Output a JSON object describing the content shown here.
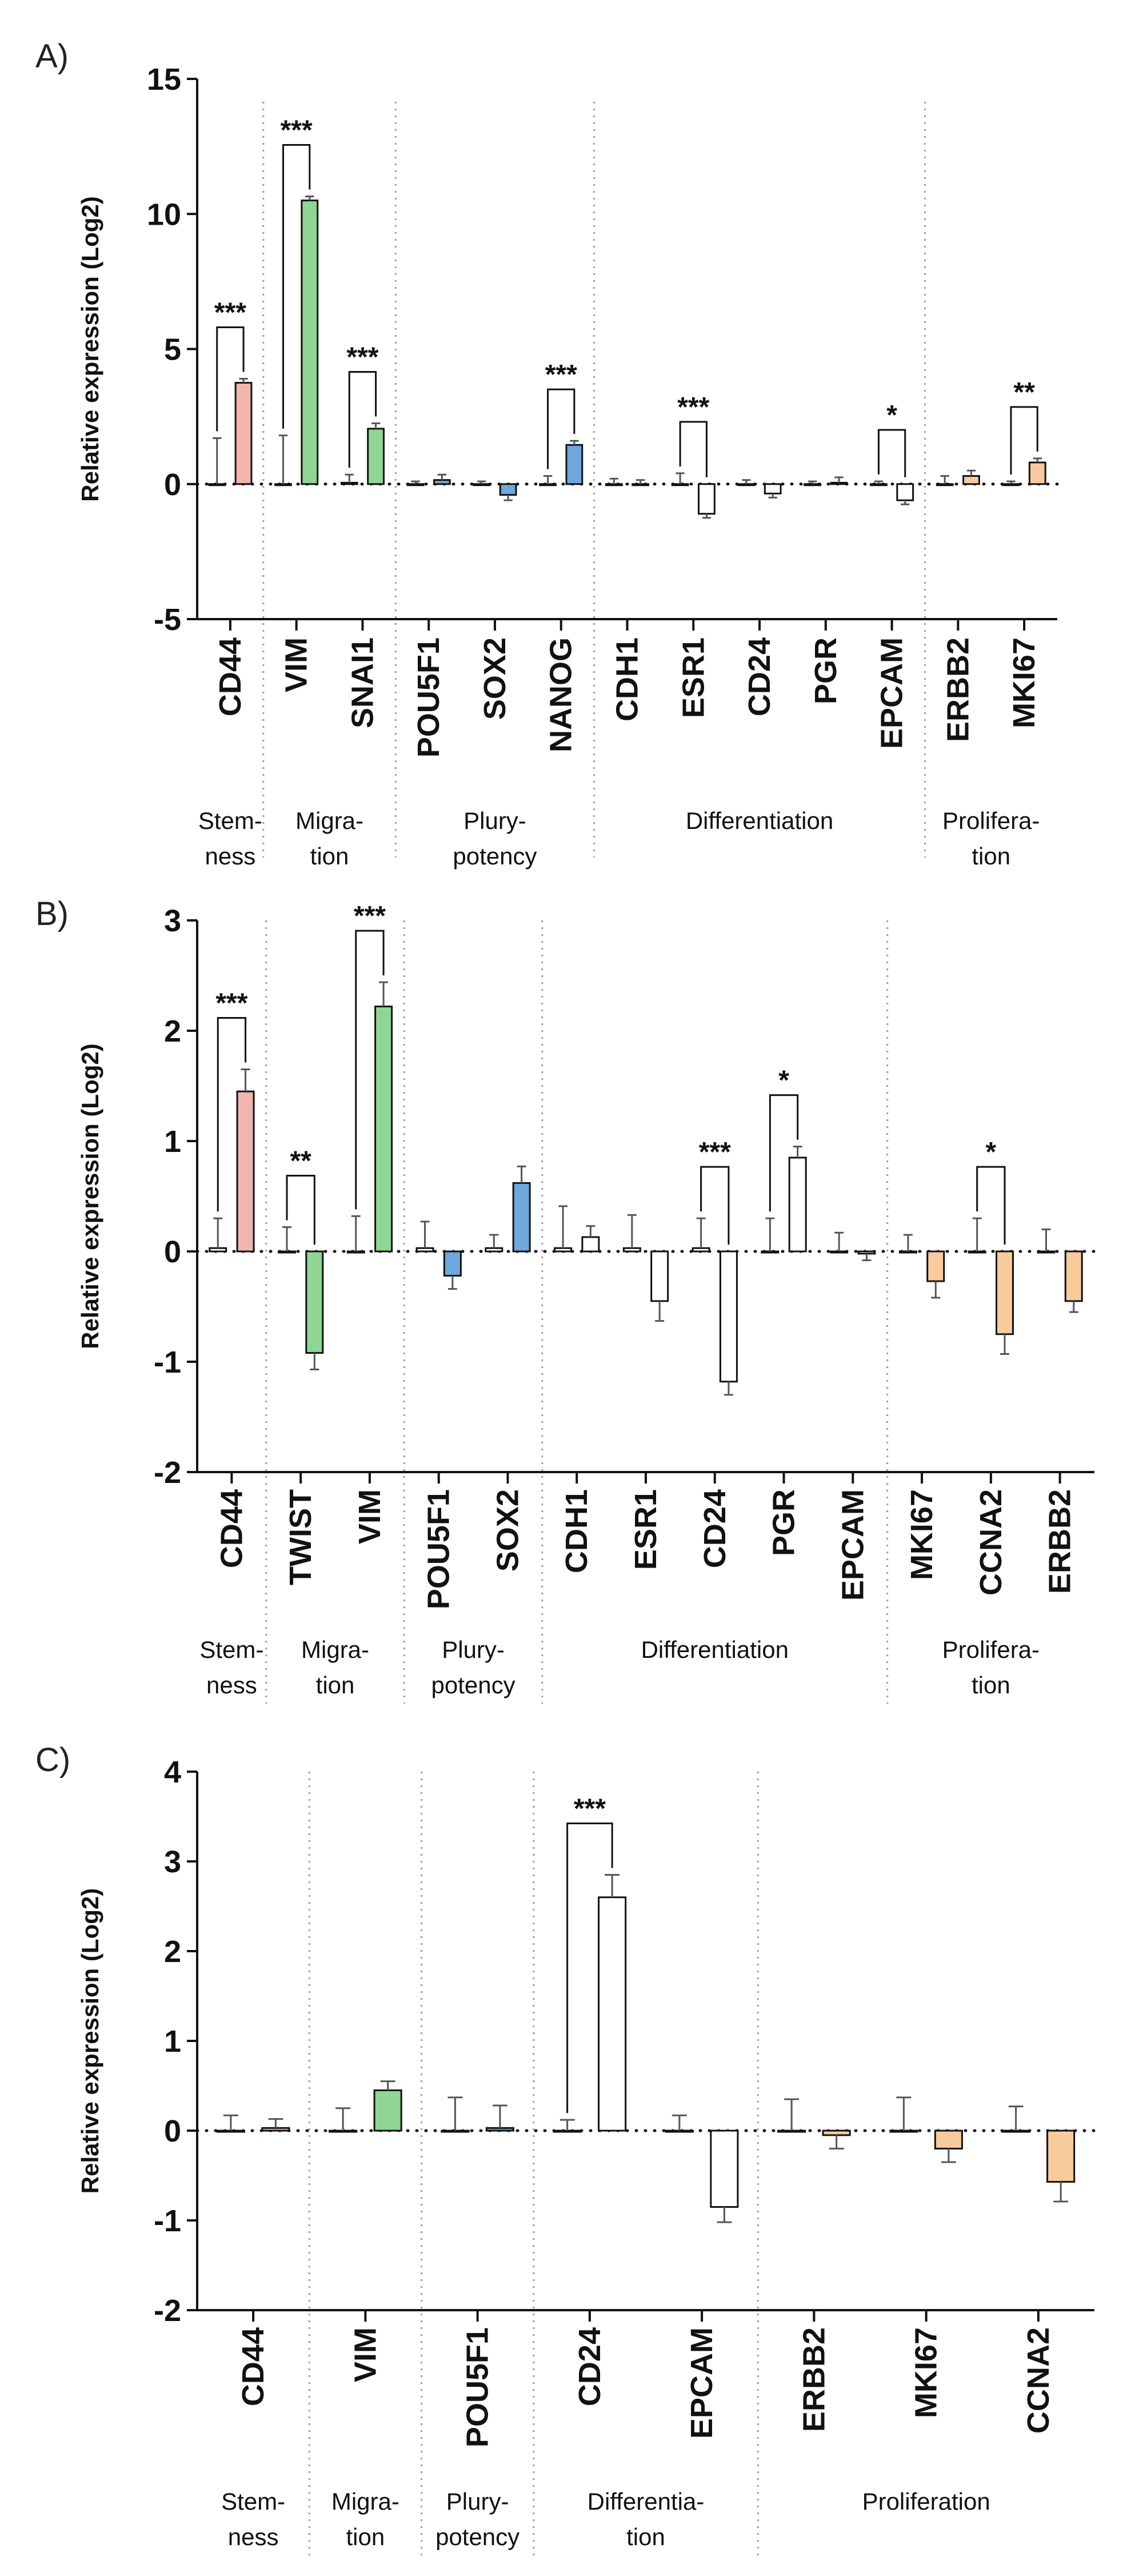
{
  "figure": {
    "panels": [
      "A)",
      "B)",
      "C)"
    ]
  },
  "chart_data": [
    {
      "panel": "A)",
      "type": "bar",
      "ylabel": "Relative expression (Log2)",
      "ylim": [
        -5,
        15
      ],
      "yticks": [
        "-5",
        "0",
        "5",
        "10",
        "15"
      ],
      "genes": [
        {
          "name": "CD44",
          "control": 0.0,
          "control_err": 1.7,
          "treated": 3.75,
          "treated_err": 0.15,
          "color": "#f2b6ae",
          "sig": "***"
        },
        {
          "name": "VIM",
          "control": 0.0,
          "control_err": 1.8,
          "treated": 10.5,
          "treated_err": 0.15,
          "color": "#8fd694",
          "sig": "***"
        },
        {
          "name": "SNAI1",
          "control": 0.05,
          "control_err": 0.3,
          "treated": 2.05,
          "treated_err": 0.2,
          "color": "#8fd694",
          "sig": "***"
        },
        {
          "name": "POU5F1",
          "control": 0.0,
          "control_err": 0.1,
          "treated": 0.15,
          "treated_err": 0.2,
          "color": "#6fa8dc",
          "sig": ""
        },
        {
          "name": "SOX2",
          "control": 0.0,
          "control_err": 0.1,
          "treated": -0.4,
          "treated_err": 0.2,
          "color": "#6fa8dc",
          "sig": ""
        },
        {
          "name": "NANOG",
          "control": 0.0,
          "control_err": 0.3,
          "treated": 1.45,
          "treated_err": 0.15,
          "color": "#6fa8dc",
          "sig": "***"
        },
        {
          "name": "CDH1",
          "control": 0.0,
          "control_err": 0.2,
          "treated": 0.0,
          "treated_err": 0.15,
          "color": "#ffffff",
          "sig": ""
        },
        {
          "name": "ESR1",
          "control": 0.0,
          "control_err": 0.4,
          "treated": -1.1,
          "treated_err": 0.15,
          "color": "#ffffff",
          "sig": "***"
        },
        {
          "name": "CD24",
          "control": 0.0,
          "control_err": 0.15,
          "treated": -0.35,
          "treated_err": 0.15,
          "color": "#ffffff",
          "sig": ""
        },
        {
          "name": "PGR",
          "control": 0.0,
          "control_err": 0.1,
          "treated": 0.05,
          "treated_err": 0.2,
          "color": "#ffffff",
          "sig": ""
        },
        {
          "name": "EPCAM",
          "control": 0.0,
          "control_err": 0.1,
          "treated": -0.6,
          "treated_err": 0.15,
          "color": "#ffffff",
          "sig": "*"
        },
        {
          "name": "ERBB2",
          "control": 0.0,
          "control_err": 0.3,
          "treated": 0.3,
          "treated_err": 0.2,
          "color": "#f9cb9c",
          "sig": ""
        },
        {
          "name": "MKI67",
          "control": 0.0,
          "control_err": 0.1,
          "treated": 0.8,
          "treated_err": 0.15,
          "color": "#f9cb9c",
          "sig": "**"
        }
      ],
      "groups": [
        {
          "lines": [
            "Stem-",
            "ness"
          ],
          "start": 0,
          "end": 0
        },
        {
          "lines": [
            "Migra-",
            "tion"
          ],
          "start": 1,
          "end": 2
        },
        {
          "lines": [
            "Plury-",
            "potency"
          ],
          "start": 3,
          "end": 5
        },
        {
          "lines": [
            "Differentiation"
          ],
          "start": 6,
          "end": 10
        },
        {
          "lines": [
            "Prolifera-",
            "tion"
          ],
          "start": 11,
          "end": 12
        }
      ]
    },
    {
      "panel": "B)",
      "type": "bar",
      "ylabel": "Relative expression (Log2)",
      "ylim": [
        -2,
        3
      ],
      "yticks": [
        "-2",
        "-1",
        "0",
        "1",
        "2",
        "3"
      ],
      "genes": [
        {
          "name": "CD44",
          "control": 0.03,
          "control_err": 0.27,
          "treated": 1.45,
          "treated_err": 0.2,
          "color": "#f2b6ae",
          "sig": "***"
        },
        {
          "name": "TWIST",
          "control": 0.0,
          "control_err": 0.22,
          "treated": -0.92,
          "treated_err": 0.15,
          "color": "#8fd694",
          "sig": "**"
        },
        {
          "name": "VIM",
          "control": 0.0,
          "control_err": 0.32,
          "treated": 2.22,
          "treated_err": 0.22,
          "color": "#8fd694",
          "sig": "***"
        },
        {
          "name": "POU5F1",
          "control": 0.03,
          "control_err": 0.24,
          "treated": -0.22,
          "treated_err": 0.12,
          "color": "#6fa8dc",
          "sig": ""
        },
        {
          "name": "SOX2",
          "control": 0.03,
          "control_err": 0.12,
          "treated": 0.62,
          "treated_err": 0.15,
          "color": "#6fa8dc",
          "sig": ""
        },
        {
          "name": "CDH1",
          "control": 0.03,
          "control_err": 0.38,
          "treated": 0.13,
          "treated_err": 0.1,
          "color": "#ffffff",
          "sig": ""
        },
        {
          "name": "ESR1",
          "control": 0.03,
          "control_err": 0.3,
          "treated": -0.45,
          "treated_err": 0.18,
          "color": "#ffffff",
          "sig": ""
        },
        {
          "name": "CD24",
          "control": 0.03,
          "control_err": 0.27,
          "treated": -1.18,
          "treated_err": 0.12,
          "color": "#ffffff",
          "sig": "***"
        },
        {
          "name": "PGR",
          "control": 0.0,
          "control_err": 0.3,
          "treated": 0.85,
          "treated_err": 0.1,
          "color": "#ffffff",
          "sig": "*"
        },
        {
          "name": "EPCAM",
          "control": 0.0,
          "control_err": 0.17,
          "treated": -0.02,
          "treated_err": 0.06,
          "color": "#ffffff",
          "sig": ""
        },
        {
          "name": "MKI67",
          "control": 0.0,
          "control_err": 0.15,
          "treated": -0.27,
          "treated_err": 0.15,
          "color": "#f9cb9c",
          "sig": ""
        },
        {
          "name": "CCNA2",
          "control": 0.0,
          "control_err": 0.3,
          "treated": -0.75,
          "treated_err": 0.18,
          "color": "#f9cb9c",
          "sig": "*"
        },
        {
          "name": "ERBB2",
          "control": 0.0,
          "control_err": 0.2,
          "treated": -0.45,
          "treated_err": 0.1,
          "color": "#f9cb9c",
          "sig": ""
        }
      ],
      "groups": [
        {
          "lines": [
            "Stem-",
            "ness"
          ],
          "start": 0,
          "end": 0
        },
        {
          "lines": [
            "Migra-",
            "tion"
          ],
          "start": 1,
          "end": 2
        },
        {
          "lines": [
            "Plury-",
            "potency"
          ],
          "start": 3,
          "end": 4
        },
        {
          "lines": [
            "Differentiation"
          ],
          "start": 5,
          "end": 9
        },
        {
          "lines": [
            "Prolifera-",
            "tion"
          ],
          "start": 10,
          "end": 12
        }
      ]
    },
    {
      "panel": "C)",
      "type": "bar",
      "ylabel": "Relative expression (Log2)",
      "ylim": [
        -2,
        4
      ],
      "yticks": [
        "-2",
        "-1",
        "0",
        "1",
        "2",
        "3",
        "4"
      ],
      "genes": [
        {
          "name": "CD44",
          "control": 0.0,
          "control_err": 0.17,
          "treated": 0.03,
          "treated_err": 0.1,
          "color": "#f2b6ae",
          "sig": ""
        },
        {
          "name": "VIM",
          "control": 0.0,
          "control_err": 0.25,
          "treated": 0.45,
          "treated_err": 0.1,
          "color": "#8fd694",
          "sig": ""
        },
        {
          "name": "POU5F1",
          "control": 0.0,
          "control_err": 0.37,
          "treated": 0.03,
          "treated_err": 0.25,
          "color": "#6fa8dc",
          "sig": ""
        },
        {
          "name": "CD24",
          "control": 0.0,
          "control_err": 0.12,
          "treated": 2.6,
          "treated_err": 0.25,
          "color": "#ffffff",
          "sig": "***"
        },
        {
          "name": "EPCAM",
          "control": 0.0,
          "control_err": 0.17,
          "treated": -0.85,
          "treated_err": 0.17,
          "color": "#ffffff",
          "sig": ""
        },
        {
          "name": "ERBB2",
          "control": 0.0,
          "control_err": 0.35,
          "treated": -0.05,
          "treated_err": 0.15,
          "color": "#f9cb9c",
          "sig": ""
        },
        {
          "name": "MKI67",
          "control": 0.0,
          "control_err": 0.37,
          "treated": -0.2,
          "treated_err": 0.15,
          "color": "#f9cb9c",
          "sig": ""
        },
        {
          "name": "CCNA2",
          "control": 0.0,
          "control_err": 0.27,
          "treated": -0.57,
          "treated_err": 0.22,
          "color": "#f9cb9c",
          "sig": ""
        }
      ],
      "groups": [
        {
          "lines": [
            "Stem-",
            "ness"
          ],
          "start": 0,
          "end": 0
        },
        {
          "lines": [
            "Migra-",
            "tion"
          ],
          "start": 1,
          "end": 1
        },
        {
          "lines": [
            "Plury-",
            "potency"
          ],
          "start": 2,
          "end": 2
        },
        {
          "lines": [
            "Differentia-",
            "tion"
          ],
          "start": 3,
          "end": 4
        },
        {
          "lines": [
            "Proliferation"
          ],
          "start": 5,
          "end": 7
        }
      ]
    }
  ]
}
